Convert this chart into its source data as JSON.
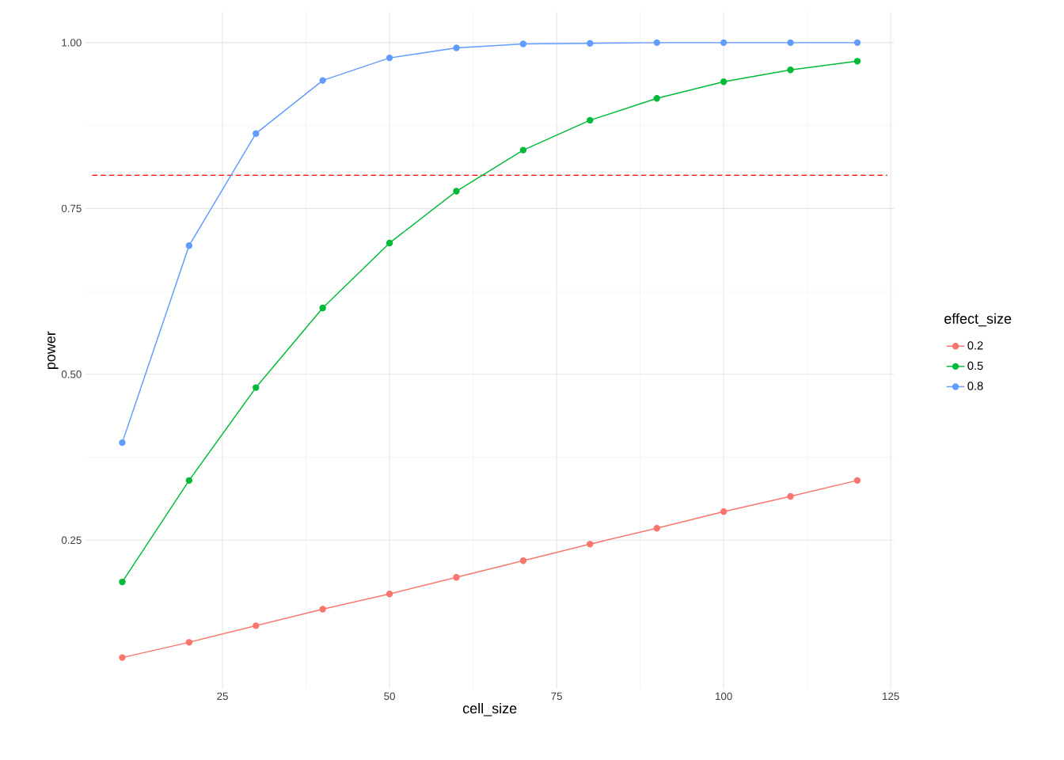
{
  "chart_data": {
    "type": "line",
    "xlabel": "cell_size",
    "ylabel": "power",
    "legend_title": "effect_size",
    "x": [
      10,
      20,
      30,
      40,
      50,
      60,
      70,
      80,
      90,
      100,
      110,
      120
    ],
    "series": [
      {
        "name": "0.2",
        "color": "#f8766d",
        "values": [
          0.073,
          0.096,
          0.121,
          0.146,
          0.169,
          0.194,
          0.219,
          0.244,
          0.268,
          0.293,
          0.316,
          0.34
        ]
      },
      {
        "name": "0.5",
        "color": "#00ba38",
        "values": [
          0.187,
          0.34,
          0.48,
          0.6,
          0.698,
          0.776,
          0.838,
          0.883,
          0.916,
          0.941,
          0.959,
          0.972
        ]
      },
      {
        "name": "0.8",
        "color": "#619cff",
        "values": [
          0.397,
          0.694,
          0.863,
          0.943,
          0.977,
          0.992,
          0.998,
          0.999,
          1.0,
          1.0,
          1.0,
          1.0
        ]
      }
    ],
    "xlim": [
      4.5,
      125.5
    ],
    "ylim": [
      0.026,
      1.046
    ],
    "xticks": [
      25,
      50,
      75,
      100,
      125
    ],
    "yticks": [
      {
        "value": 0.25,
        "label": "0.25"
      },
      {
        "value": 0.5,
        "label": "0.50"
      },
      {
        "value": 0.75,
        "label": "0.75"
      },
      {
        "value": 1.0,
        "label": "1.00"
      }
    ],
    "ref_lines": [
      {
        "axis": "y",
        "value": 0.8,
        "color": "#ff0000",
        "line_style": "dashed"
      }
    ],
    "grid": true,
    "legend": "right",
    "marker": "circle",
    "line_style": "solid"
  }
}
